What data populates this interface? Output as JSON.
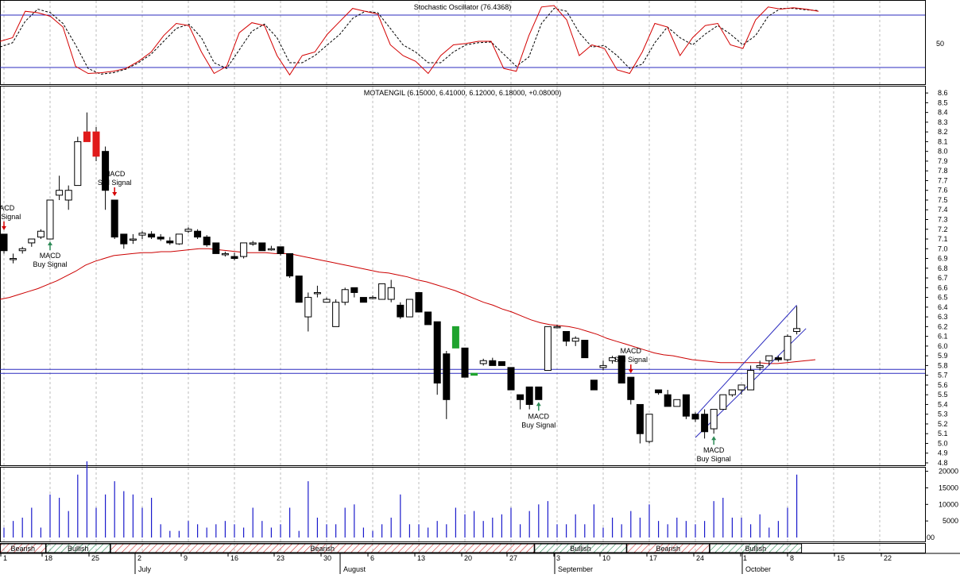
{
  "colors": {
    "up_special": "#1fa32e",
    "down_special": "#e01b1b",
    "stoch_k": "#d40000",
    "ma": "#cc0000",
    "hline": "#2b2bbf",
    "volume": "#1a1acc",
    "bears": "#cc3333",
    "bulls": "#2e8b57"
  },
  "stochastic": {
    "title": "Stochastic Oscillator (76.4368)",
    "ytick": "50",
    "k": [
      50,
      55,
      92,
      90,
      85,
      70,
      15,
      5,
      6,
      8,
      12,
      22,
      35,
      58,
      75,
      72,
      35,
      5,
      15,
      62,
      76,
      72,
      30,
      3,
      30,
      35,
      60,
      78,
      96,
      92,
      88,
      45,
      30,
      22,
      5,
      30,
      45,
      47,
      50,
      50,
      12,
      8,
      58,
      98,
      100,
      80,
      30,
      45,
      40,
      10,
      5,
      35,
      75,
      70,
      30,
      55,
      72,
      75,
      45,
      40,
      80,
      98,
      95,
      97,
      95,
      92
    ],
    "d": [
      42,
      48,
      78,
      95,
      90,
      75,
      45,
      12,
      4,
      6,
      11,
      20,
      32,
      50,
      68,
      74,
      55,
      20,
      12,
      38,
      64,
      74,
      55,
      20,
      20,
      30,
      45,
      60,
      82,
      92,
      90,
      68,
      45,
      35,
      20,
      20,
      35,
      45,
      48,
      49,
      32,
      15,
      28,
      75,
      96,
      92,
      62,
      42,
      44,
      30,
      12,
      18,
      48,
      70,
      55,
      45,
      60,
      72,
      60,
      45,
      58,
      85,
      96,
      96,
      94,
      93
    ]
  },
  "price": {
    "title": "MOTAENGIL (6.15000, 6.41000, 6.12000, 6.18000, +0.08000)",
    "yticks": [
      "8.6",
      "8.5",
      "8.4",
      "8.3",
      "8.2",
      "8.1",
      "8.0",
      "7.9",
      "7.8",
      "7.7",
      "7.6",
      "7.5",
      "7.4",
      "7.3",
      "7.2",
      "7.1",
      "7.0",
      "6.9",
      "6.8",
      "6.7",
      "6.6",
      "6.5",
      "6.4",
      "6.3",
      "6.2",
      "6.1",
      "6.0",
      "5.9",
      "5.8",
      "5.7",
      "5.6",
      "5.5",
      "5.4",
      "5.3",
      "5.2",
      "5.1",
      "5.0",
      "4.9",
      "4.8"
    ],
    "signals": [
      {
        "label": [
          "MACD",
          "Sell Signal"
        ],
        "dir": "sell",
        "bar": 0
      },
      {
        "label": [
          "MACD",
          "Buy Signal"
        ],
        "dir": "buy",
        "bar": 5
      },
      {
        "label": [
          "MACD",
          "Sell Signal"
        ],
        "dir": "sell",
        "bar": 12
      },
      {
        "label": [
          "MACD",
          "Buy Signal"
        ],
        "dir": "buy",
        "bar": 58
      },
      {
        "label": [
          "MACD",
          "Sell Signal"
        ],
        "dir": "sell",
        "bar": 68
      },
      {
        "label": [
          "MACD",
          "Buy Signal"
        ],
        "dir": "buy",
        "bar": 77
      }
    ]
  },
  "volume": {
    "yticks": [
      "20000",
      "15000",
      "10000",
      "5000"
    ],
    "corner": "00"
  },
  "trend_bands": [
    {
      "label": "Bearish",
      "type": "bears",
      "from": 0,
      "to": 4
    },
    {
      "label": "Bullish",
      "type": "bulls",
      "from": 5,
      "to": 11
    },
    {
      "label": "Bearish",
      "type": "bears",
      "from": 12,
      "to": 57
    },
    {
      "label": "Bullish",
      "type": "bulls",
      "from": 58,
      "to": 67
    },
    {
      "label": "Bearish",
      "type": "bears",
      "from": 68,
      "to": 76
    },
    {
      "label": "Bullish",
      "type": "bulls",
      "from": 77,
      "to": 86
    }
  ],
  "xaxis": {
    "days": [
      "1",
      "18",
      "25",
      "2",
      "9",
      "16",
      "23",
      "30",
      "6",
      "13",
      "20",
      "27",
      "3",
      "10",
      "17",
      "24",
      "1",
      "8",
      "15",
      "22"
    ],
    "months": [
      "July",
      "August",
      "September",
      "October"
    ]
  },
  "chart_data": {
    "type": "candlestick",
    "title": "MOTAENGIL (6.15000, 6.41000, 6.12000, 6.18000, +0.08000)",
    "ylim": [
      4.8,
      8.6
    ],
    "candles": [
      {
        "o": 7.15,
        "h": 7.15,
        "l": 6.95,
        "c": 6.98
      },
      {
        "o": 6.9,
        "h": 6.95,
        "l": 6.85,
        "c": 6.9
      },
      {
        "o": 6.98,
        "h": 7.02,
        "l": 6.95,
        "c": 7.0
      },
      {
        "o": 7.06,
        "h": 7.1,
        "l": 7.02,
        "c": 7.1
      },
      {
        "o": 7.12,
        "h": 7.2,
        "l": 7.1,
        "c": 7.18
      },
      {
        "o": 7.1,
        "h": 7.5,
        "l": 7.1,
        "c": 7.5
      },
      {
        "o": 7.55,
        "h": 7.75,
        "l": 7.5,
        "c": 7.6
      },
      {
        "o": 7.5,
        "h": 7.65,
        "l": 7.4,
        "c": 7.6
      },
      {
        "o": 7.65,
        "h": 8.15,
        "l": 7.65,
        "c": 8.1
      },
      {
        "o": 8.2,
        "h": 8.4,
        "l": 8.1,
        "c": 8.1
      },
      {
        "o": 8.2,
        "h": 8.25,
        "l": 7.9,
        "c": 7.95
      },
      {
        "o": 8.0,
        "h": 8.05,
        "l": 7.4,
        "c": 7.6
      },
      {
        "o": 7.5,
        "h": 7.5,
        "l": 7.1,
        "c": 7.12
      },
      {
        "o": 7.15,
        "h": 7.15,
        "l": 7.0,
        "c": 7.05
      },
      {
        "o": 7.1,
        "h": 7.15,
        "l": 7.05,
        "c": 7.1
      },
      {
        "o": 7.14,
        "h": 7.18,
        "l": 7.1,
        "c": 7.16
      },
      {
        "o": 7.15,
        "h": 7.18,
        "l": 7.1,
        "c": 7.12
      },
      {
        "o": 7.12,
        "h": 7.15,
        "l": 7.08,
        "c": 7.1
      },
      {
        "o": 7.08,
        "h": 7.12,
        "l": 7.04,
        "c": 7.06
      },
      {
        "o": 7.05,
        "h": 7.15,
        "l": 7.04,
        "c": 7.15
      },
      {
        "o": 7.18,
        "h": 7.22,
        "l": 7.16,
        "c": 7.2
      },
      {
        "o": 7.18,
        "h": 7.2,
        "l": 7.1,
        "c": 7.12
      },
      {
        "o": 7.12,
        "h": 7.14,
        "l": 7.02,
        "c": 7.04
      },
      {
        "o": 7.06,
        "h": 7.06,
        "l": 6.95,
        "c": 6.95
      },
      {
        "o": 6.95,
        "h": 6.97,
        "l": 6.92,
        "c": 6.95
      },
      {
        "o": 6.92,
        "h": 6.96,
        "l": 6.88,
        "c": 6.9
      },
      {
        "o": 6.92,
        "h": 7.06,
        "l": 6.9,
        "c": 7.06
      },
      {
        "o": 7.05,
        "h": 7.08,
        "l": 7.03,
        "c": 7.06
      },
      {
        "o": 7.06,
        "h": 7.06,
        "l": 6.98,
        "c": 6.98
      },
      {
        "o": 7.0,
        "h": 7.03,
        "l": 6.98,
        "c": 7.0
      },
      {
        "o": 7.02,
        "h": 7.02,
        "l": 6.93,
        "c": 6.95
      },
      {
        "o": 6.95,
        "h": 6.95,
        "l": 6.7,
        "c": 6.72
      },
      {
        "o": 6.72,
        "h": 6.72,
        "l": 6.45,
        "c": 6.45
      },
      {
        "o": 6.3,
        "h": 6.55,
        "l": 6.15,
        "c": 6.5
      },
      {
        "o": 6.55,
        "h": 6.62,
        "l": 6.5,
        "c": 6.55
      },
      {
        "o": 6.45,
        "h": 6.5,
        "l": 6.45,
        "c": 6.48
      },
      {
        "o": 6.2,
        "h": 6.48,
        "l": 6.2,
        "c": 6.45
      },
      {
        "o": 6.45,
        "h": 6.6,
        "l": 6.42,
        "c": 6.58
      },
      {
        "o": 6.6,
        "h": 6.6,
        "l": 6.5,
        "c": 6.55
      },
      {
        "o": 6.5,
        "h": 6.5,
        "l": 6.45,
        "c": 6.45
      },
      {
        "o": 6.5,
        "h": 6.52,
        "l": 6.48,
        "c": 6.5
      },
      {
        "o": 6.48,
        "h": 6.64,
        "l": 6.48,
        "c": 6.64
      },
      {
        "o": 6.48,
        "h": 6.68,
        "l": 6.45,
        "c": 6.6
      },
      {
        "o": 6.42,
        "h": 6.45,
        "l": 6.28,
        "c": 6.3
      },
      {
        "o": 6.3,
        "h": 6.48,
        "l": 6.3,
        "c": 6.48
      },
      {
        "o": 6.55,
        "h": 6.55,
        "l": 6.35,
        "c": 6.35
      },
      {
        "o": 6.35,
        "h": 6.35,
        "l": 6.22,
        "c": 6.22
      },
      {
        "o": 6.25,
        "h": 6.25,
        "l": 5.5,
        "c": 5.62
      },
      {
        "o": 5.92,
        "h": 5.95,
        "l": 5.25,
        "c": 5.45
      },
      {
        "o": 5.98,
        "h": 6.2,
        "l": 5.98,
        "c": 6.2
      },
      {
        "o": 5.98,
        "h": 5.98,
        "l": 5.68,
        "c": 5.68
      },
      {
        "o": 5.72,
        "h": 5.72,
        "l": 5.7,
        "c": 5.7
      },
      {
        "o": 5.82,
        "h": 5.87,
        "l": 5.8,
        "c": 5.85
      },
      {
        "o": 5.85,
        "h": 5.88,
        "l": 5.8,
        "c": 5.8
      },
      {
        "o": 5.84,
        "h": 5.84,
        "l": 5.8,
        "c": 5.8
      },
      {
        "o": 5.78,
        "h": 5.78,
        "l": 5.55,
        "c": 5.55
      },
      {
        "o": 5.5,
        "h": 5.5,
        "l": 5.35,
        "c": 5.45
      },
      {
        "o": 5.58,
        "h": 5.58,
        "l": 5.35,
        "c": 5.4
      },
      {
        "o": 5.58,
        "h": 5.58,
        "l": 5.45,
        "c": 5.45
      },
      {
        "o": 5.75,
        "h": 6.2,
        "l": 5.75,
        "c": 6.2
      },
      {
        "o": 6.2,
        "h": 6.22,
        "l": 6.18,
        "c": 6.2
      },
      {
        "o": 6.15,
        "h": 6.15,
        "l": 6.0,
        "c": 6.05
      },
      {
        "o": 6.05,
        "h": 6.1,
        "l": 6.0,
        "c": 6.08
      },
      {
        "o": 6.06,
        "h": 6.06,
        "l": 5.88,
        "c": 5.88
      },
      {
        "o": 5.65,
        "h": 5.65,
        "l": 5.55,
        "c": 5.55
      },
      {
        "o": 5.78,
        "h": 5.85,
        "l": 5.75,
        "c": 5.8
      },
      {
        "o": 5.85,
        "h": 5.9,
        "l": 5.82,
        "c": 5.88
      },
      {
        "o": 5.9,
        "h": 5.9,
        "l": 5.62,
        "c": 5.62
      },
      {
        "o": 5.68,
        "h": 5.68,
        "l": 5.4,
        "c": 5.45
      },
      {
        "o": 5.4,
        "h": 5.4,
        "l": 5.0,
        "c": 5.1
      },
      {
        "o": 5.02,
        "h": 5.3,
        "l": 5.0,
        "c": 5.3
      },
      {
        "o": 5.55,
        "h": 5.55,
        "l": 5.5,
        "c": 5.52
      },
      {
        "o": 5.5,
        "h": 5.55,
        "l": 5.38,
        "c": 5.38
      },
      {
        "o": 5.38,
        "h": 5.45,
        "l": 5.38,
        "c": 5.45
      },
      {
        "o": 5.5,
        "h": 5.5,
        "l": 5.25,
        "c": 5.28
      },
      {
        "o": 5.3,
        "h": 5.32,
        "l": 5.22,
        "c": 5.25
      },
      {
        "o": 5.3,
        "h": 5.35,
        "l": 5.05,
        "c": 5.12
      },
      {
        "o": 5.15,
        "h": 5.35,
        "l": 5.1,
        "c": 5.35
      },
      {
        "o": 5.35,
        "h": 5.5,
        "l": 5.35,
        "c": 5.5
      },
      {
        "o": 5.5,
        "h": 5.55,
        "l": 5.48,
        "c": 5.55
      },
      {
        "o": 5.55,
        "h": 5.6,
        "l": 5.5,
        "c": 5.6
      },
      {
        "o": 5.55,
        "h": 5.8,
        "l": 5.55,
        "c": 5.75
      },
      {
        "o": 5.78,
        "h": 5.85,
        "l": 5.75,
        "c": 5.8
      },
      {
        "o": 5.85,
        "h": 5.9,
        "l": 5.8,
        "c": 5.9
      },
      {
        "o": 5.88,
        "h": 5.9,
        "l": 5.84,
        "c": 5.86
      },
      {
        "o": 5.86,
        "h": 6.12,
        "l": 5.84,
        "c": 6.1
      },
      {
        "o": 6.15,
        "h": 6.41,
        "l": 6.12,
        "c": 6.18
      }
    ],
    "special": {
      "green": [
        49,
        51
      ],
      "red": [
        9,
        10
      ]
    },
    "sma": [
      6.48,
      6.5,
      6.53,
      6.56,
      6.59,
      6.63,
      6.67,
      6.72,
      6.77,
      6.83,
      6.87,
      6.9,
      6.93,
      6.94,
      6.95,
      6.96,
      6.96,
      6.97,
      6.97,
      6.98,
      6.99,
      7.0,
      7.0,
      6.99,
      6.98,
      6.97,
      6.96,
      6.96,
      6.96,
      6.95,
      6.95,
      6.94,
      6.92,
      6.9,
      6.88,
      6.86,
      6.84,
      6.82,
      6.8,
      6.78,
      6.76,
      6.75,
      6.73,
      6.71,
      6.68,
      6.66,
      6.63,
      6.6,
      6.57,
      6.53,
      6.49,
      6.45,
      6.42,
      6.38,
      6.35,
      6.31,
      6.27,
      6.24,
      6.22,
      6.21,
      6.2,
      6.18,
      6.15,
      6.12,
      6.08,
      6.05,
      6.02,
      5.99,
      5.96,
      5.93,
      5.91,
      5.9,
      5.88,
      5.86,
      5.85,
      5.84,
      5.83,
      5.83,
      5.83,
      5.83,
      5.83,
      5.82,
      5.82,
      5.83,
      5.84,
      5.85,
      5.86
    ],
    "support_lines": [
      5.76,
      5.72
    ],
    "channel": {
      "upper": {
        "b0": 75,
        "p0": 5.28,
        "b1": 86,
        "p1": 6.42
      },
      "lower": {
        "b0": 75,
        "p0": 5.06,
        "b1": 87,
        "p1": 6.18
      }
    },
    "volume": [
      3000,
      5000,
      6000,
      9000,
      3000,
      13000,
      12000,
      8000,
      19000,
      23000,
      9000,
      13000,
      17000,
      14000,
      13000,
      9000,
      12000,
      4000,
      2000,
      2000,
      5000,
      4000,
      3000,
      4000,
      5000,
      4000,
      3000,
      9000,
      5000,
      3000,
      4000,
      9000,
      2000,
      17000,
      6000,
      4000,
      4000,
      9000,
      10000,
      3000,
      2000,
      4000,
      6000,
      13000,
      4000,
      4000,
      3000,
      5000,
      4000,
      9000,
      7000,
      8000,
      5000,
      6000,
      7000,
      9000,
      4000,
      8000,
      10000,
      11000,
      4000,
      4000,
      7000,
      4000,
      10000,
      3000,
      6000,
      4000,
      8000,
      6000,
      10000,
      5000,
      4000,
      6000,
      5000,
      4000,
      5000,
      11000,
      12000,
      6000,
      6000,
      4000,
      7000,
      3000,
      5000,
      9000,
      19000
    ]
  }
}
